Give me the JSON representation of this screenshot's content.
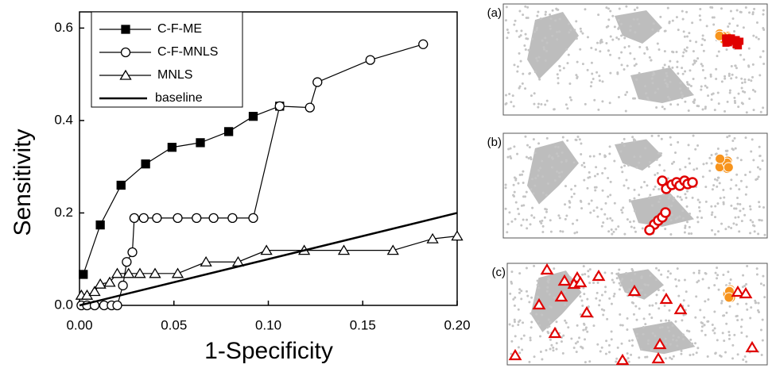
{
  "chart_data": {
    "type": "line",
    "x_label": "1-Specificity",
    "y_label": "Sensitivity",
    "xlim": [
      0,
      0.2
    ],
    "ylim": [
      0,
      0.635
    ],
    "xticks": [
      {
        "value": 0,
        "label": "0.00"
      },
      {
        "value": 0.05,
        "label": "0.05"
      },
      {
        "value": 0.1,
        "label": "0.10"
      },
      {
        "value": 0.15,
        "label": "0.15"
      },
      {
        "value": 0.2,
        "label": "0.20"
      }
    ],
    "yticks": [
      {
        "value": 0,
        "label": "0.0"
      },
      0.2,
      0.4,
      0.6
    ],
    "legend": "upper left",
    "series": [
      {
        "name": "C-F-ME",
        "color": "#000000",
        "marker": "filled-square",
        "x": [
          0.002,
          0.011,
          0.022,
          0.035,
          0.049,
          0.064,
          0.079,
          0.092,
          0.106
        ],
        "values": [
          0.067,
          0.174,
          0.26,
          0.306,
          0.342,
          0.352,
          0.376,
          0.409,
          0.431
        ]
      },
      {
        "name": "C-F-MNLS",
        "color": "#000000",
        "marker": "open-circle",
        "x": [
          0.001,
          0.004,
          0.008,
          0.013,
          0.017,
          0.02,
          0.023,
          0.025,
          0.028,
          0.029,
          0.034,
          0.041,
          0.052,
          0.062,
          0.071,
          0.081,
          0.092,
          0.106,
          0.122,
          0.126,
          0.154,
          0.182
        ],
        "values": [
          0,
          0,
          0,
          0,
          0,
          0,
          0.043,
          0.094,
          0.115,
          0.189,
          0.189,
          0.189,
          0.189,
          0.189,
          0.189,
          0.189,
          0.189,
          0.431,
          0.428,
          0.483,
          0.531,
          0.565
        ]
      },
      {
        "name": "MNLS",
        "color": "#000000",
        "marker": "open-triangle",
        "x": [
          0.001,
          0.004,
          0.008,
          0.011,
          0.016,
          0.02,
          0.026,
          0.032,
          0.04,
          0.052,
          0.067,
          0.084,
          0.099,
          0.119,
          0.14,
          0.166,
          0.187,
          0.2
        ],
        "values": [
          0.022,
          0.022,
          0.03,
          0.046,
          0.05,
          0.069,
          0.069,
          0.069,
          0.069,
          0.069,
          0.094,
          0.094,
          0.119,
          0.119,
          0.119,
          0.119,
          0.144,
          0.15
        ]
      },
      {
        "name": "baseline",
        "color": "#000000",
        "marker": "none",
        "x": [
          0,
          0.2
        ],
        "values": [
          0,
          0.2
        ]
      }
    ],
    "panels": [
      {
        "label": "(a)"
      },
      {
        "label": "(b)"
      },
      {
        "label": "(c)"
      }
    ]
  }
}
